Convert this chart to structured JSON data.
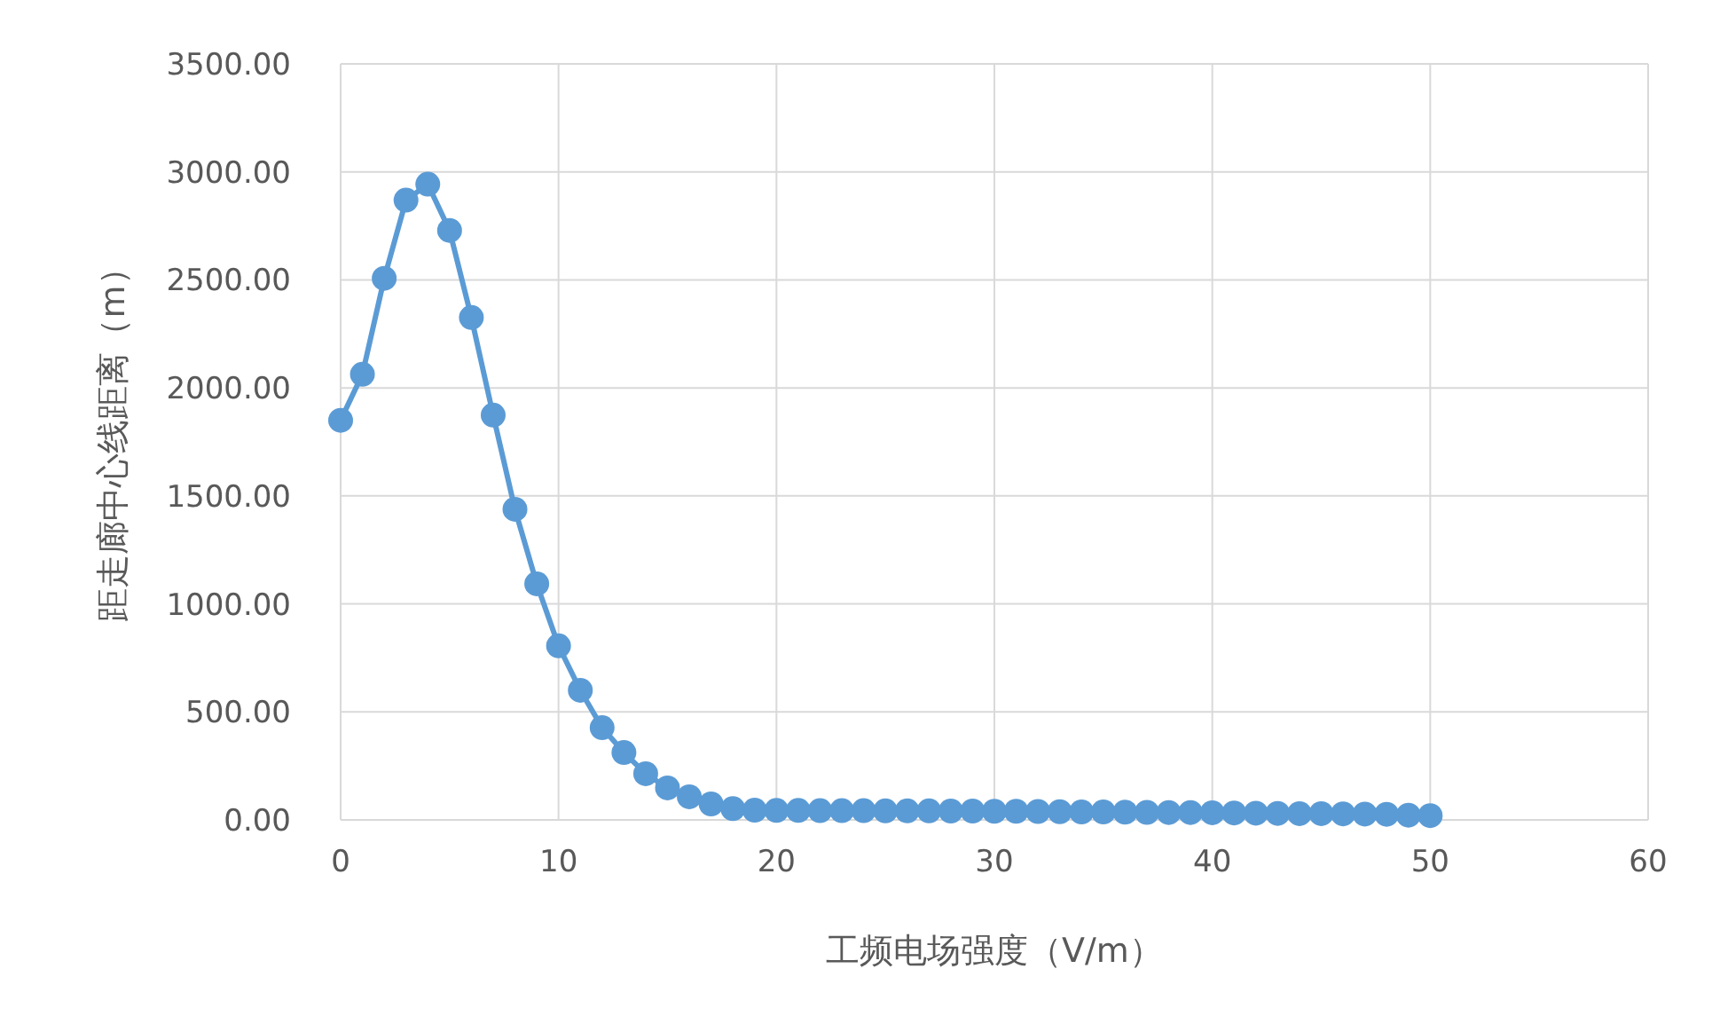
{
  "chart_data": {
    "type": "line",
    "xlabel": "工频电场强度（V/m）",
    "ylabel": "距走廊中心线距离（m）",
    "x": [
      0,
      1,
      2,
      3,
      4,
      5,
      6,
      7,
      8,
      9,
      10,
      11,
      12,
      13,
      14,
      15,
      16,
      17,
      18,
      19,
      20,
      21,
      22,
      23,
      24,
      25,
      26,
      27,
      28,
      29,
      30,
      31,
      32,
      33,
      34,
      35,
      36,
      37,
      38,
      39,
      40,
      41,
      42,
      43,
      44,
      45,
      46,
      47,
      48,
      49,
      50
    ],
    "series": [
      {
        "color": "#5b9bd5",
        "values": [
          1850,
          2063,
          2507,
          2869,
          2943,
          2729,
          2326,
          1874,
          1438,
          1093,
          806,
          600,
          427,
          312,
          214,
          148,
          107,
          74,
          52,
          45,
          44,
          44,
          43,
          43,
          43,
          42,
          42,
          42,
          41,
          41,
          40,
          40,
          39,
          38,
          37,
          37,
          36,
          35,
          34,
          34,
          33,
          32,
          31,
          30,
          29,
          29,
          28,
          27,
          26,
          22,
          20
        ]
      }
    ],
    "xlim": [
      0,
      60
    ],
    "xticks": [
      0,
      10,
      20,
      30,
      40,
      50,
      60
    ],
    "ylim": [
      0,
      3500
    ],
    "yticks": [
      {
        "value": 0,
        "label": "0.00"
      },
      {
        "value": 500,
        "label": "500.00"
      },
      {
        "value": 1000,
        "label": "1000.00"
      },
      {
        "value": 1500,
        "label": "1500.00"
      },
      {
        "value": 2000,
        "label": "2000.00"
      },
      {
        "value": 2500,
        "label": "2500.00"
      },
      {
        "value": 3000,
        "label": "3000.00"
      },
      {
        "value": 3500,
        "label": "3500.00"
      }
    ],
    "grid": true,
    "marker": "circle",
    "line_style": "solid"
  }
}
